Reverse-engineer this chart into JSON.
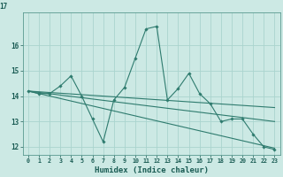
{
  "title": "",
  "xlabel": "Humidex (Indice chaleur)",
  "background_color": "#cce9e4",
  "grid_color": "#aad4ce",
  "line_color": "#2e7b6e",
  "xlim": [
    -0.5,
    23.5
  ],
  "ylim": [
    11.7,
    17.3
  ],
  "yticks": [
    12,
    13,
    14,
    15,
    16
  ],
  "xticks": [
    0,
    1,
    2,
    3,
    4,
    5,
    6,
    7,
    8,
    9,
    10,
    11,
    12,
    13,
    14,
    15,
    16,
    17,
    18,
    19,
    20,
    21,
    22,
    23
  ],
  "series1_x": [
    0,
    1,
    2,
    3,
    4,
    5,
    6,
    7,
    8,
    9,
    10,
    11,
    12,
    13,
    14,
    15,
    16,
    17,
    18,
    19,
    20,
    21,
    22,
    23
  ],
  "series1_y": [
    14.2,
    14.1,
    14.1,
    14.4,
    14.8,
    14.0,
    13.1,
    12.2,
    13.85,
    14.35,
    15.5,
    16.65,
    16.75,
    13.85,
    14.3,
    14.9,
    14.1,
    13.7,
    13.0,
    13.1,
    13.1,
    12.5,
    12.0,
    11.9
  ],
  "series2_x": [
    0,
    23
  ],
  "series2_y": [
    14.2,
    13.55
  ],
  "series3_x": [
    0,
    23
  ],
  "series3_y": [
    14.2,
    13.0
  ],
  "series4_x": [
    0,
    23
  ],
  "series4_y": [
    14.2,
    11.95
  ]
}
